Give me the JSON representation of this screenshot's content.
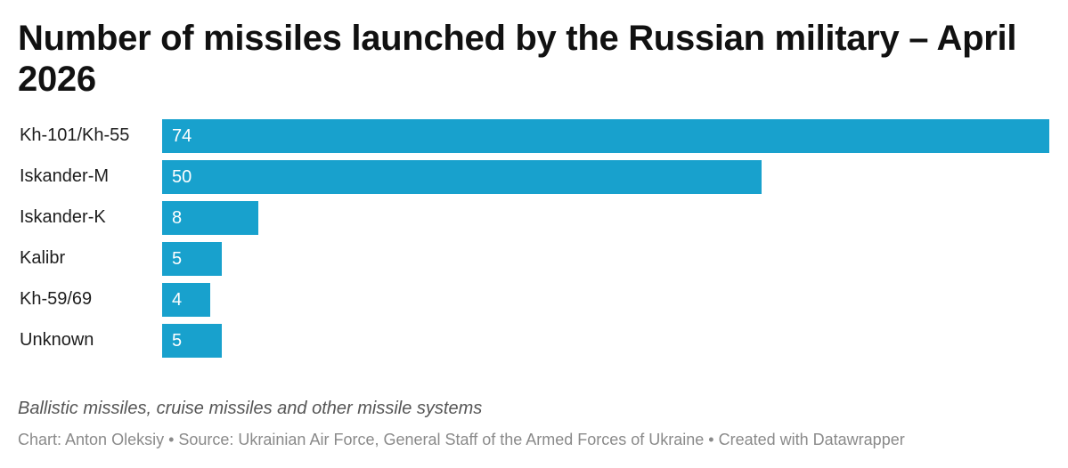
{
  "chart_data": {
    "type": "bar",
    "orientation": "horizontal",
    "title": "Number of missiles launched by the Russian military – April 2026",
    "categories": [
      "Kh-101/Kh-55",
      "Iskander-M",
      "Iskander-K",
      "Kalibr",
      "Kh-59/69",
      "Unknown"
    ],
    "values": [
      74,
      50,
      8,
      5,
      4,
      5
    ],
    "xlim": [
      0,
      74
    ],
    "grid": false,
    "legend": "none",
    "bar_color": "#18a1cd",
    "notes": "Ballistic missiles, cruise missiles and other missile systems",
    "footer": "Chart: Anton Oleksiy • Source: Ukrainian Air Force, General Staff of the Armed Forces of Ukraine • Created with Datawrapper"
  }
}
